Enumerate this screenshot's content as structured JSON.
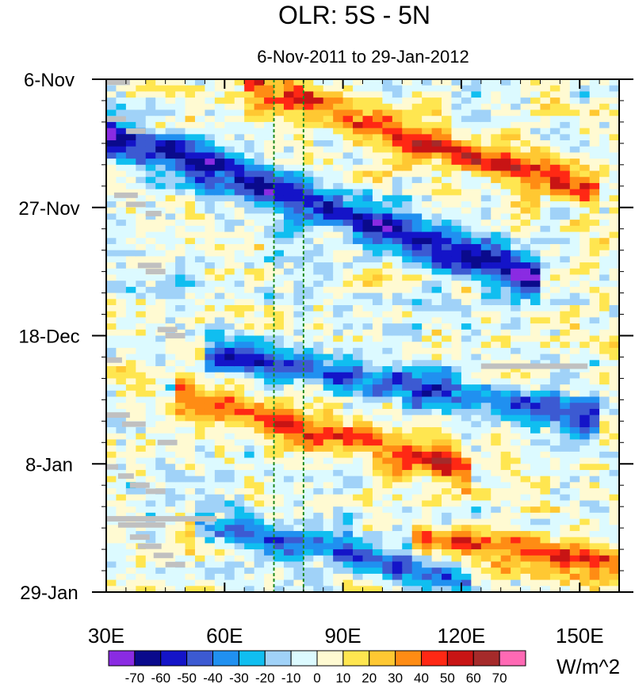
{
  "chart_data": {
    "type": "heatmap",
    "title": "OLR: 5S - 5N",
    "subtitle": "6-Nov-2011 to 29-Jan-2012",
    "xlabel": "",
    "ylabel": "",
    "xlim": [
      30,
      160
    ],
    "ylim_days": [
      0,
      84
    ],
    "x_ticks": [
      {
        "value": 30,
        "label": "30E"
      },
      {
        "value": 60,
        "label": "60E"
      },
      {
        "value": 90,
        "label": "90E"
      },
      {
        "value": 120,
        "label": "120E"
      },
      {
        "value": 150,
        "label": "150E"
      }
    ],
    "y_ticks": [
      {
        "day": 0,
        "label": "6-Nov"
      },
      {
        "day": 21,
        "label": "27-Nov"
      },
      {
        "day": 42,
        "label": "18-Dec"
      },
      {
        "day": 63,
        "label": "8-Jan"
      },
      {
        "day": 84,
        "label": "29-Jan"
      }
    ],
    "reference_lines_lon": [
      72.5,
      80
    ],
    "reference_line_color": "#1e8a1e",
    "missing_color": "#c0c0c0",
    "colorbar": {
      "units_label": "W/m^2",
      "levels": [
        "-70",
        "-60",
        "-50",
        "-40",
        "-30",
        "-20",
        "-10",
        "0",
        "10",
        "20",
        "30",
        "40",
        "50",
        "60",
        "70"
      ],
      "colors": [
        "#8a2be2",
        "#0a0a8c",
        "#1414c8",
        "#3c5ad2",
        "#2090f0",
        "#10bef0",
        "#a0d2f8",
        "#dcfaff",
        "#fffad2",
        "#ffe650",
        "#ffc832",
        "#ff8c14",
        "#ff2814",
        "#c81414",
        "#a52a2a",
        "#ff69b4"
      ]
    },
    "anomaly_features": [
      {
        "name": "convective-band-1",
        "lon_start": 35,
        "day_start": 10,
        "lon_end": 135,
        "day_end": 32,
        "value": -60,
        "width_days": 3.5
      },
      {
        "name": "convective-band-2",
        "lon_start": 60,
        "day_start": 45,
        "lon_end": 150,
        "day_end": 55,
        "value": -45,
        "width_days": 3
      },
      {
        "name": "convective-band-3",
        "lon_start": 55,
        "day_start": 73,
        "lon_end": 120,
        "day_end": 82,
        "value": -40,
        "width_days": 2.5
      },
      {
        "name": "suppressed-band-1",
        "lon_start": 70,
        "day_start": 2,
        "lon_end": 150,
        "day_end": 18,
        "value": 45,
        "width_days": 3
      },
      {
        "name": "suppressed-band-2",
        "lon_start": 50,
        "day_start": 52,
        "lon_end": 120,
        "day_end": 64,
        "value": 45,
        "width_days": 3
      },
      {
        "name": "suppressed-band-3",
        "lon_start": 110,
        "day_start": 75,
        "lon_end": 160,
        "day_end": 80,
        "value": 40,
        "width_days": 3
      }
    ],
    "missing_segments": [
      {
        "lon_start": 30,
        "lon_end": 36,
        "day": 0.5
      },
      {
        "lon_start": 30,
        "lon_end": 35,
        "day": 6.5
      },
      {
        "lon_start": 35,
        "lon_end": 40,
        "day": 8.5
      },
      {
        "lon_start": 32,
        "lon_end": 38,
        "day": 19
      },
      {
        "lon_start": 35,
        "lon_end": 40,
        "day": 20.5
      },
      {
        "lon_start": 40,
        "lon_end": 44,
        "day": 22
      },
      {
        "lon_start": 38,
        "lon_end": 44,
        "day": 30.5
      },
      {
        "lon_start": 40,
        "lon_end": 45,
        "day": 31.5
      },
      {
        "lon_start": 43,
        "lon_end": 48,
        "day": 41
      },
      {
        "lon_start": 45,
        "lon_end": 50,
        "day": 42
      },
      {
        "lon_start": 30,
        "lon_end": 34,
        "day": 46
      },
      {
        "lon_start": 125,
        "lon_end": 152,
        "day": 47
      },
      {
        "lon_start": 30,
        "lon_end": 36,
        "day": 55
      },
      {
        "lon_start": 34,
        "lon_end": 40,
        "day": 56.5
      },
      {
        "lon_start": 43,
        "lon_end": 48,
        "day": 59.5
      },
      {
        "lon_start": 30,
        "lon_end": 33,
        "day": 63.5
      },
      {
        "lon_start": 33,
        "lon_end": 37,
        "day": 65
      },
      {
        "lon_start": 36,
        "lon_end": 41,
        "day": 66.5
      },
      {
        "lon_start": 40,
        "lon_end": 45,
        "day": 67.5
      },
      {
        "lon_start": 30,
        "lon_end": 58,
        "day": 72
      },
      {
        "lon_start": 33,
        "lon_end": 45,
        "day": 73
      },
      {
        "lon_start": 36,
        "lon_end": 41,
        "day": 75
      },
      {
        "lon_start": 38,
        "lon_end": 44,
        "day": 76.5
      },
      {
        "lon_start": 42,
        "lon_end": 47,
        "day": 78
      },
      {
        "lon_start": 45,
        "lon_end": 50,
        "day": 79.5
      }
    ]
  }
}
